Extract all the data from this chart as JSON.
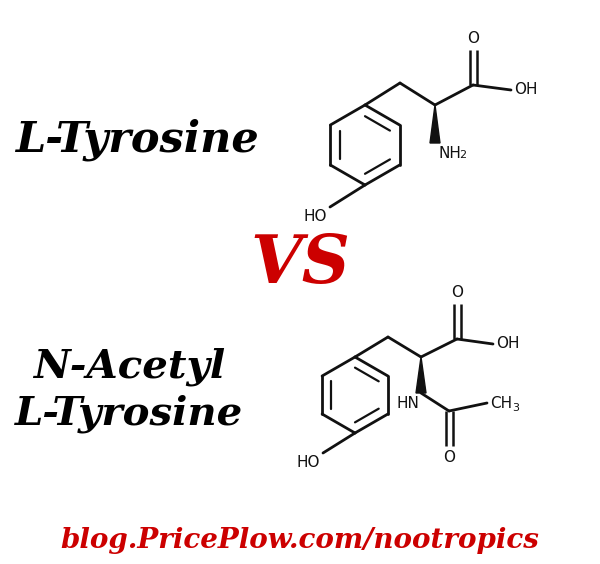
{
  "background_color": "#ffffff",
  "label1": "L-Tyrosine",
  "label2": "N-Acetyl\nL-Tyrosine",
  "vs_text": "VS",
  "footer_text": "blog.PricePlow.com/nootropics",
  "label_color": "#000000",
  "vs_color": "#cc0000",
  "footer_color": "#cc0000",
  "struct_color": "#111111",
  "figsize": [
    6.0,
    5.64
  ],
  "dpi": 100
}
